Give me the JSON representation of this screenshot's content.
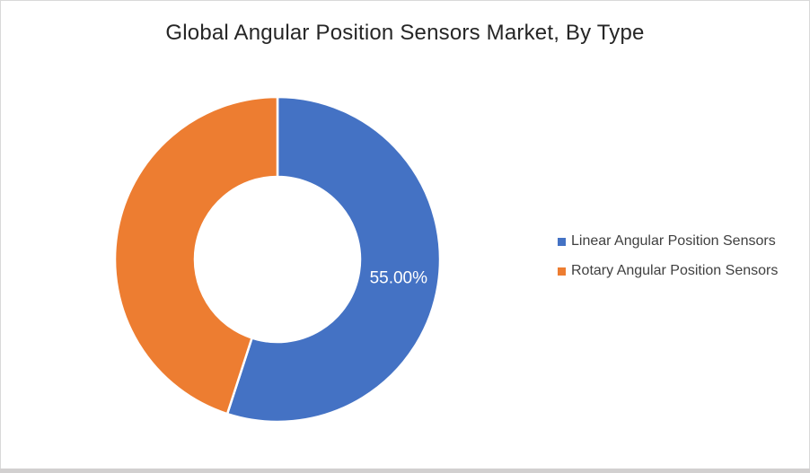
{
  "title": "Global Angular Position Sensors Market, By Type",
  "chart_data": {
    "type": "pie",
    "subtype": "donut",
    "title": "Global Angular Position Sensors Market, By Type",
    "categories": [
      "Linear Angular Position Sensors",
      "Rotary Angular Position Sensors"
    ],
    "values": [
      55,
      45
    ],
    "data_labels": [
      "55.00%",
      ""
    ],
    "colors": [
      "#4472C4",
      "#ED7D31"
    ],
    "start_angle_deg": 0,
    "direction": "clockwise",
    "hole_ratio": 0.51,
    "legend_position": "right",
    "data_label_color": "#FFFFFF",
    "slice_gap_color": "#FFFFFF",
    "background": "#FFFFFF"
  },
  "legend": {
    "items": [
      {
        "label": "Linear Angular Position Sensors",
        "color": "#4472C4"
      },
      {
        "label": "Rotary Angular Position Sensors",
        "color": "#ED7D31"
      }
    ]
  }
}
